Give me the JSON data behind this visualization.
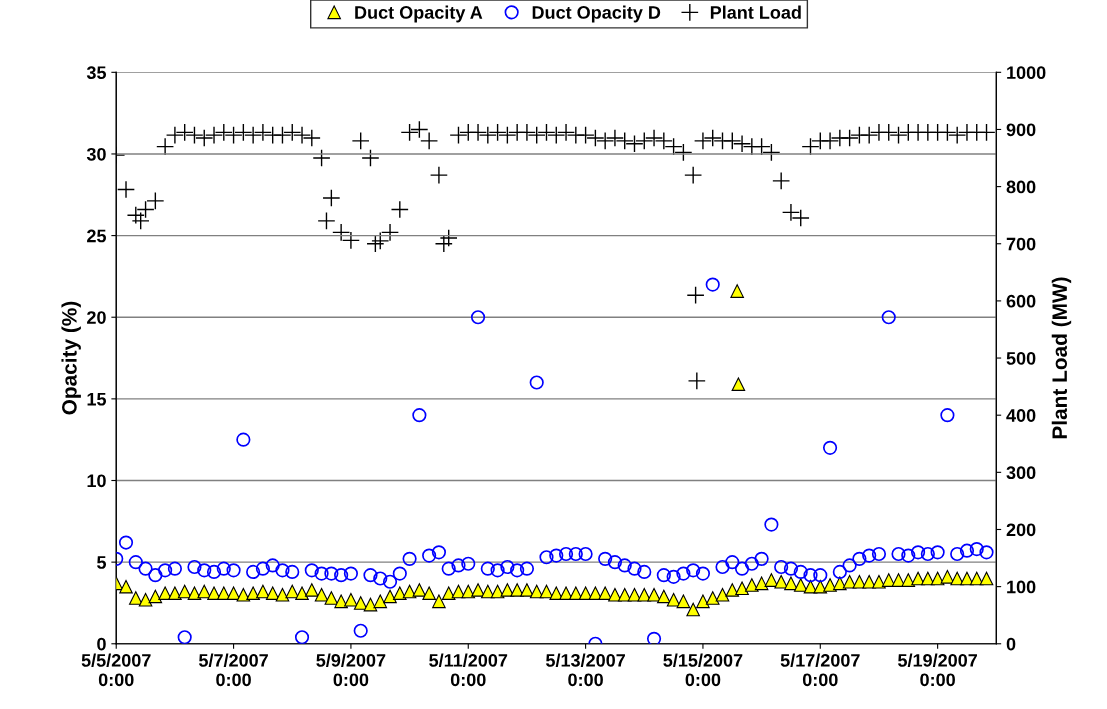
{
  "chart_data": {
    "type": "scatter",
    "ylabel": "Opacity (%)",
    "y2label": "Plant Load (MW)",
    "xlim": [
      "2007-05-05T00:00",
      "2007-05-20T00:00"
    ],
    "xticks": [
      {
        "value": "2007-05-05T00:00",
        "label": "5/5/2007\n0:00"
      },
      {
        "value": "2007-05-07T00:00",
        "label": "5/7/2007\n0:00"
      },
      {
        "value": "2007-05-09T00:00",
        "label": "5/9/2007\n0:00"
      },
      {
        "value": "2007-05-11T00:00",
        "label": "5/11/2007\n0:00"
      },
      {
        "value": "2007-05-13T00:00",
        "label": "5/13/2007\n0:00"
      },
      {
        "value": "2007-05-15T00:00",
        "label": "5/15/2007\n0:00"
      },
      {
        "value": "2007-05-17T00:00",
        "label": "5/17/2007\n0:00"
      },
      {
        "value": "2007-05-19T00:00",
        "label": "5/19/2007\n0:00"
      }
    ],
    "ylim": [
      0,
      35
    ],
    "yticks": [
      0,
      5,
      10,
      15,
      20,
      25,
      30,
      35
    ],
    "y2lim": [
      0,
      1000
    ],
    "y2ticks": [
      0,
      100,
      200,
      300,
      400,
      500,
      600,
      700,
      800,
      900,
      1000
    ],
    "grid": "y",
    "legend": "top",
    "series": [
      {
        "name": "Duct Opacity A",
        "color": "#ffff00",
        "marker": "triangle",
        "x": [
          "2007-05-05T00:00",
          "2007-05-05T04:00",
          "2007-05-05T08:00",
          "2007-05-05T12:00",
          "2007-05-05T16:00",
          "2007-05-05T20:00",
          "2007-05-06T00:00",
          "2007-05-06T04:00",
          "2007-05-06T08:00",
          "2007-05-06T12:00",
          "2007-05-06T16:00",
          "2007-05-06T20:00",
          "2007-05-07T00:00",
          "2007-05-07T04:00",
          "2007-05-07T08:00",
          "2007-05-07T12:00",
          "2007-05-07T16:00",
          "2007-05-07T20:00",
          "2007-05-08T00:00",
          "2007-05-08T04:00",
          "2007-05-08T08:00",
          "2007-05-08T12:00",
          "2007-05-08T16:00",
          "2007-05-08T20:00",
          "2007-05-09T00:00",
          "2007-05-09T04:00",
          "2007-05-09T08:00",
          "2007-05-09T12:00",
          "2007-05-09T16:00",
          "2007-05-09T20:00",
          "2007-05-10T00:00",
          "2007-05-10T04:00",
          "2007-05-10T08:00",
          "2007-05-10T12:00",
          "2007-05-10T16:00",
          "2007-05-10T20:00",
          "2007-05-11T00:00",
          "2007-05-11T04:00",
          "2007-05-11T08:00",
          "2007-05-11T12:00",
          "2007-05-11T16:00",
          "2007-05-11T20:00",
          "2007-05-12T00:00",
          "2007-05-12T04:00",
          "2007-05-12T08:00",
          "2007-05-12T12:00",
          "2007-05-12T16:00",
          "2007-05-12T20:00",
          "2007-05-13T00:00",
          "2007-05-13T04:00",
          "2007-05-13T08:00",
          "2007-05-13T12:00",
          "2007-05-13T16:00",
          "2007-05-13T20:00",
          "2007-05-14T00:00",
          "2007-05-14T04:00",
          "2007-05-14T08:00",
          "2007-05-14T12:00",
          "2007-05-14T16:00",
          "2007-05-14T20:00",
          "2007-05-15T00:00",
          "2007-05-15T04:00",
          "2007-05-15T08:00",
          "2007-05-15T12:00",
          "2007-05-15T16:00",
          "2007-05-15T20:00",
          "2007-05-16T00:00",
          "2007-05-16T04:00",
          "2007-05-16T08:00",
          "2007-05-16T12:00",
          "2007-05-16T16:00",
          "2007-05-16T20:00",
          "2007-05-17T00:00",
          "2007-05-17T04:00",
          "2007-05-17T08:00",
          "2007-05-17T12:00",
          "2007-05-17T16:00",
          "2007-05-17T20:00",
          "2007-05-18T00:00",
          "2007-05-18T04:00",
          "2007-05-18T08:00",
          "2007-05-18T12:00",
          "2007-05-18T16:00",
          "2007-05-18T20:00",
          "2007-05-19T00:00",
          "2007-05-19T04:00",
          "2007-05-19T08:00",
          "2007-05-19T12:00",
          "2007-05-19T16:00",
          "2007-05-19T20:00",
          "2007-05-15T14:00",
          "2007-05-15T14:30"
        ],
        "values": [
          3.7,
          3.5,
          2.8,
          2.7,
          2.9,
          3.1,
          3.1,
          3.2,
          3.1,
          3.2,
          3.1,
          3.1,
          3.1,
          3.0,
          3.1,
          3.2,
          3.1,
          3.0,
          3.2,
          3.1,
          3.3,
          3.0,
          2.8,
          2.6,
          2.7,
          2.5,
          2.4,
          2.6,
          2.9,
          3.1,
          3.2,
          3.3,
          3.1,
          2.6,
          3.1,
          3.2,
          3.2,
          3.3,
          3.2,
          3.2,
          3.3,
          3.3,
          3.3,
          3.2,
          3.2,
          3.1,
          3.1,
          3.1,
          3.1,
          3.1,
          3.1,
          3.0,
          3.0,
          3.0,
          3.0,
          3.0,
          2.9,
          2.7,
          2.6,
          2.1,
          2.6,
          2.8,
          3.0,
          3.3,
          3.4,
          3.6,
          3.7,
          3.9,
          3.8,
          3.7,
          3.6,
          3.5,
          3.5,
          3.6,
          3.7,
          3.8,
          3.8,
          3.8,
          3.8,
          3.9,
          3.9,
          3.9,
          4.0,
          4.0,
          4.0,
          4.1,
          4.0,
          4.0,
          4.0,
          4.0,
          21.6,
          15.9
        ]
      },
      {
        "name": "Duct Opacity D",
        "color": "#0000ff",
        "marker": "circle",
        "x": [
          "2007-05-05T00:00",
          "2007-05-05T04:00",
          "2007-05-05T08:00",
          "2007-05-05T12:00",
          "2007-05-05T16:00",
          "2007-05-05T20:00",
          "2007-05-06T00:00",
          "2007-05-06T04:00",
          "2007-05-06T08:00",
          "2007-05-06T12:00",
          "2007-05-06T16:00",
          "2007-05-06T20:00",
          "2007-05-07T00:00",
          "2007-05-07T04:00",
          "2007-05-07T08:00",
          "2007-05-07T12:00",
          "2007-05-07T16:00",
          "2007-05-07T20:00",
          "2007-05-08T00:00",
          "2007-05-08T04:00",
          "2007-05-08T08:00",
          "2007-05-08T12:00",
          "2007-05-08T16:00",
          "2007-05-08T20:00",
          "2007-05-09T00:00",
          "2007-05-09T04:00",
          "2007-05-09T08:00",
          "2007-05-09T12:00",
          "2007-05-09T16:00",
          "2007-05-09T20:00",
          "2007-05-10T00:00",
          "2007-05-10T04:00",
          "2007-05-10T08:00",
          "2007-05-10T12:00",
          "2007-05-10T16:00",
          "2007-05-10T20:00",
          "2007-05-11T00:00",
          "2007-05-11T04:00",
          "2007-05-11T08:00",
          "2007-05-11T12:00",
          "2007-05-11T16:00",
          "2007-05-11T20:00",
          "2007-05-12T00:00",
          "2007-05-12T04:00",
          "2007-05-12T08:00",
          "2007-05-12T12:00",
          "2007-05-12T16:00",
          "2007-05-12T20:00",
          "2007-05-13T00:00",
          "2007-05-13T04:00",
          "2007-05-13T08:00",
          "2007-05-13T12:00",
          "2007-05-13T16:00",
          "2007-05-13T20:00",
          "2007-05-14T00:00",
          "2007-05-14T04:00",
          "2007-05-14T08:00",
          "2007-05-14T12:00",
          "2007-05-14T16:00",
          "2007-05-14T20:00",
          "2007-05-15T00:00",
          "2007-05-15T04:00",
          "2007-05-15T08:00",
          "2007-05-15T12:00",
          "2007-05-15T16:00",
          "2007-05-15T20:00",
          "2007-05-16T00:00",
          "2007-05-16T04:00",
          "2007-05-16T08:00",
          "2007-05-16T12:00",
          "2007-05-16T16:00",
          "2007-05-16T20:00",
          "2007-05-17T00:00",
          "2007-05-17T04:00",
          "2007-05-17T08:00",
          "2007-05-17T12:00",
          "2007-05-17T16:00",
          "2007-05-17T20:00",
          "2007-05-18T00:00",
          "2007-05-18T04:00",
          "2007-05-18T08:00",
          "2007-05-18T12:00",
          "2007-05-18T16:00",
          "2007-05-18T20:00",
          "2007-05-19T00:00",
          "2007-05-19T04:00",
          "2007-05-19T08:00",
          "2007-05-19T12:00",
          "2007-05-19T16:00",
          "2007-05-19T20:00"
        ],
        "values": [
          5.2,
          6.2,
          5.0,
          4.6,
          4.2,
          4.5,
          4.6,
          0.4,
          4.7,
          4.5,
          4.4,
          4.6,
          4.5,
          12.5,
          4.4,
          4.6,
          4.8,
          4.5,
          4.4,
          0.4,
          4.5,
          4.3,
          4.3,
          4.2,
          4.3,
          0.8,
          4.2,
          4.0,
          3.8,
          4.3,
          5.2,
          14.0,
          5.4,
          5.6,
          4.6,
          4.8,
          4.9,
          20.0,
          4.6,
          4.5,
          4.7,
          4.5,
          4.6,
          16.0,
          5.3,
          5.4,
          5.5,
          5.5,
          5.5,
          0.0,
          5.2,
          5.0,
          4.8,
          4.6,
          4.4,
          0.3,
          4.2,
          4.1,
          4.3,
          4.5,
          4.3,
          22.0,
          4.7,
          5.0,
          4.6,
          4.9,
          5.2,
          7.3,
          4.7,
          4.6,
          4.4,
          4.2,
          4.2,
          12.0,
          4.4,
          4.8,
          5.2,
          5.4,
          5.5,
          20.0,
          5.5,
          5.4,
          5.6,
          5.5,
          5.6,
          14.0,
          5.5,
          5.7,
          5.8,
          5.6
        ]
      },
      {
        "name": "Plant Load",
        "color": "#000000",
        "marker": "cross",
        "axis": "y2",
        "x": [
          "2007-05-05T00:00",
          "2007-05-05T04:00",
          "2007-05-05T08:00",
          "2007-05-05T12:00",
          "2007-05-05T16:00",
          "2007-05-05T20:00",
          "2007-05-06T00:00",
          "2007-05-06T04:00",
          "2007-05-06T08:00",
          "2007-05-06T12:00",
          "2007-05-06T16:00",
          "2007-05-06T20:00",
          "2007-05-07T00:00",
          "2007-05-07T04:00",
          "2007-05-07T08:00",
          "2007-05-07T12:00",
          "2007-05-07T16:00",
          "2007-05-07T20:00",
          "2007-05-08T00:00",
          "2007-05-08T04:00",
          "2007-05-08T08:00",
          "2007-05-08T12:00",
          "2007-05-08T16:00",
          "2007-05-08T20:00",
          "2007-05-09T00:00",
          "2007-05-09T04:00",
          "2007-05-09T08:00",
          "2007-05-09T12:00",
          "2007-05-09T16:00",
          "2007-05-09T20:00",
          "2007-05-10T00:00",
          "2007-05-10T04:00",
          "2007-05-10T08:00",
          "2007-05-10T12:00",
          "2007-05-10T16:00",
          "2007-05-10T20:00",
          "2007-05-11T00:00",
          "2007-05-11T04:00",
          "2007-05-11T08:00",
          "2007-05-11T12:00",
          "2007-05-11T16:00",
          "2007-05-11T20:00",
          "2007-05-12T00:00",
          "2007-05-12T04:00",
          "2007-05-12T08:00",
          "2007-05-12T12:00",
          "2007-05-12T16:00",
          "2007-05-12T20:00",
          "2007-05-13T00:00",
          "2007-05-13T04:00",
          "2007-05-13T08:00",
          "2007-05-13T12:00",
          "2007-05-13T16:00",
          "2007-05-13T20:00",
          "2007-05-14T00:00",
          "2007-05-14T04:00",
          "2007-05-14T08:00",
          "2007-05-14T12:00",
          "2007-05-14T16:00",
          "2007-05-14T20:00",
          "2007-05-15T00:00",
          "2007-05-15T04:00",
          "2007-05-15T08:00",
          "2007-05-15T12:00",
          "2007-05-15T16:00",
          "2007-05-15T20:00",
          "2007-05-16T00:00",
          "2007-05-16T04:00",
          "2007-05-16T08:00",
          "2007-05-16T12:00",
          "2007-05-16T16:00",
          "2007-05-16T20:00",
          "2007-05-17T00:00",
          "2007-05-17T04:00",
          "2007-05-17T08:00",
          "2007-05-17T12:00",
          "2007-05-17T16:00",
          "2007-05-17T20:00",
          "2007-05-18T00:00",
          "2007-05-18T04:00",
          "2007-05-18T08:00",
          "2007-05-18T12:00",
          "2007-05-18T16:00",
          "2007-05-18T20:00",
          "2007-05-19T00:00",
          "2007-05-19T04:00",
          "2007-05-19T08:00",
          "2007-05-19T12:00",
          "2007-05-19T16:00",
          "2007-05-19T20:00",
          "2007-05-05T10:00",
          "2007-05-08T14:00",
          "2007-05-09T10:00",
          "2007-05-10T14:00",
          "2007-05-14T21:00",
          "2007-05-14T21:30"
        ],
        "values": [
          855,
          795,
          750,
          760,
          775,
          870,
          890,
          895,
          890,
          885,
          890,
          895,
          890,
          895,
          890,
          895,
          890,
          890,
          895,
          890,
          885,
          850,
          780,
          720,
          706,
          880,
          850,
          705,
          720,
          760,
          895,
          900,
          880,
          820,
          710,
          890,
          895,
          895,
          890,
          895,
          890,
          895,
          895,
          890,
          895,
          890,
          895,
          890,
          890,
          885,
          880,
          885,
          880,
          875,
          880,
          885,
          880,
          870,
          860,
          820,
          880,
          885,
          880,
          880,
          875,
          870,
          870,
          860,
          810,
          755,
          745,
          870,
          880,
          880,
          885,
          885,
          890,
          890,
          895,
          895,
          890,
          895,
          895,
          895,
          895,
          895,
          890,
          895,
          895,
          895,
          740,
          740,
          700,
          700,
          610,
          460
        ]
      }
    ]
  }
}
